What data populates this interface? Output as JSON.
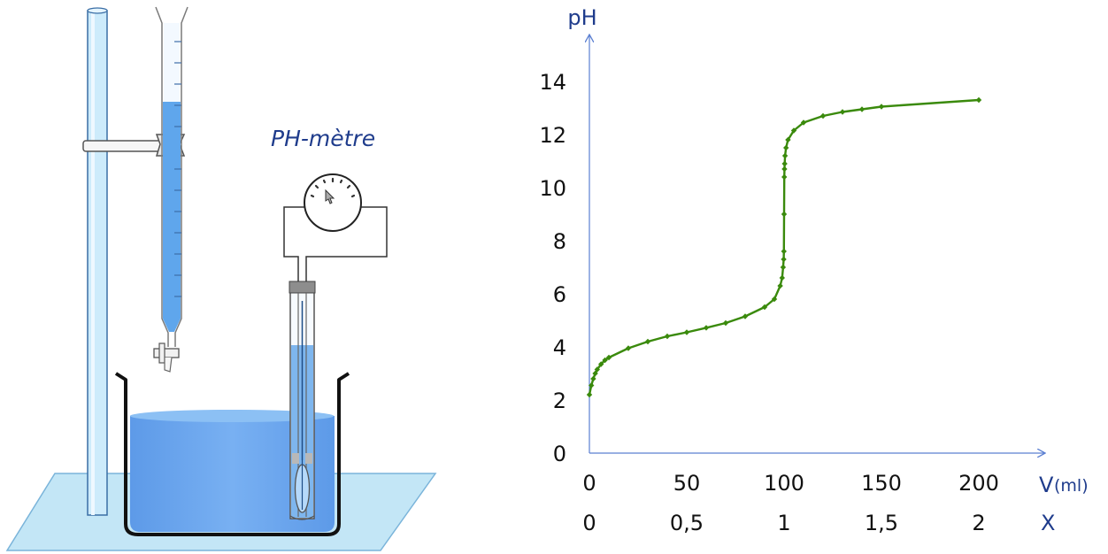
{
  "apparatus": {
    "ph_meter_label": "PH-mètre"
  },
  "chart_data": {
    "type": "line",
    "title": "",
    "ylabel": "pH",
    "xlabel": "V",
    "xlabel_unit": "(ml)",
    "x2label": "X",
    "xlim": [
      0,
      215
    ],
    "ylim": [
      0,
      15
    ],
    "yticks": [
      "0",
      "2",
      "4",
      "6",
      "8",
      "10",
      "12",
      "14"
    ],
    "xticks": [
      {
        "v": 0,
        "label": "0"
      },
      {
        "v": 50,
        "label": "50"
      },
      {
        "v": 100,
        "label": "100"
      },
      {
        "v": 150,
        "label": "150"
      },
      {
        "v": 200,
        "label": "200"
      }
    ],
    "x2ticks": [
      {
        "v": 0,
        "label": "0"
      },
      {
        "v": 50,
        "label": "0,5"
      },
      {
        "v": 100,
        "label": "1"
      },
      {
        "v": 150,
        "label": "1,5"
      },
      {
        "v": 200,
        "label": "2"
      }
    ],
    "line_color": "#3a8a0c",
    "axis_color": "#5b7fd1",
    "grid": false,
    "series": [
      {
        "points": [
          [
            0,
            2.2
          ],
          [
            1,
            2.55
          ],
          [
            2,
            2.8
          ],
          [
            3,
            3.0
          ],
          [
            4,
            3.15
          ],
          [
            6,
            3.35
          ],
          [
            8,
            3.5
          ],
          [
            10,
            3.6
          ],
          [
            20,
            3.95
          ],
          [
            30,
            4.2
          ],
          [
            40,
            4.4
          ],
          [
            50,
            4.55
          ],
          [
            60,
            4.72
          ],
          [
            70,
            4.9
          ],
          [
            80,
            5.15
          ],
          [
            90,
            5.5
          ],
          [
            95,
            5.8
          ],
          [
            98,
            6.3
          ],
          [
            99,
            6.6
          ],
          [
            99.5,
            7.0
          ],
          [
            99.8,
            7.3
          ],
          [
            99.9,
            7.6
          ],
          [
            100,
            9.0
          ],
          [
            100.1,
            10.4
          ],
          [
            100.2,
            10.7
          ],
          [
            100.3,
            10.9
          ],
          [
            100.5,
            11.2
          ],
          [
            101,
            11.5
          ],
          [
            102,
            11.8
          ],
          [
            105,
            12.15
          ],
          [
            110,
            12.45
          ],
          [
            120,
            12.7
          ],
          [
            130,
            12.85
          ],
          [
            140,
            12.95
          ],
          [
            150,
            13.05
          ],
          [
            200,
            13.3
          ]
        ]
      }
    ]
  }
}
